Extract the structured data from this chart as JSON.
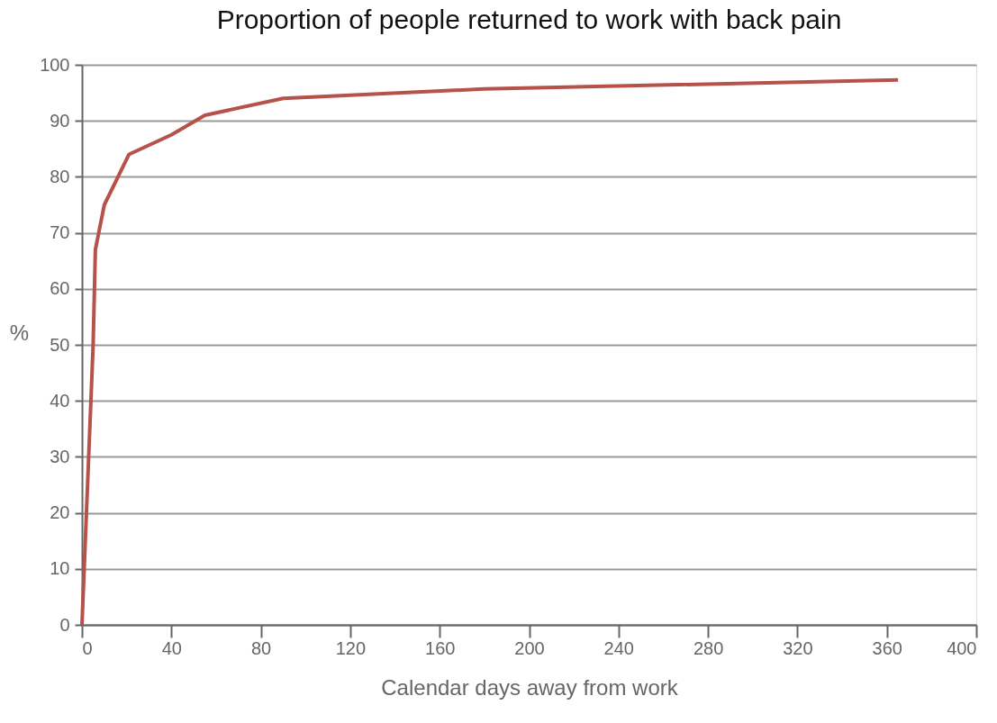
{
  "chart_data": {
    "type": "line",
    "title": "Proportion of people returned to work with back pain",
    "xlabel": "Calendar days away from work",
    "ylabel": "%",
    "x": [
      0,
      5,
      6,
      10,
      21,
      40,
      55,
      90,
      180,
      365
    ],
    "series": [
      {
        "color": "#b5524a",
        "values": [
          0,
          50,
          67,
          75,
          84,
          87.5,
          91,
          94,
          95.7,
          97.3
        ]
      }
    ],
    "xlim": [
      0,
      400
    ],
    "xticks": [
      0,
      40,
      80,
      120,
      160,
      200,
      240,
      280,
      320,
      360,
      400
    ],
    "ylim": [
      0,
      100
    ],
    "yticks": [
      0,
      10,
      20,
      30,
      40,
      50,
      60,
      70,
      80,
      90,
      100
    ],
    "grid": "y",
    "marker": "none",
    "line_style": "solid"
  }
}
